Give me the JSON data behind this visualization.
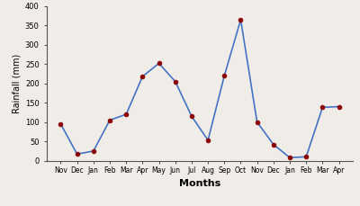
{
  "months": [
    "Nov",
    "Dec",
    "Jan",
    "Feb",
    "Mar",
    "Apr",
    "May",
    "Jun",
    "Jul",
    "Aug",
    "Sep",
    "Oct",
    "Nov",
    "Dec",
    "Jan",
    "Feb",
    "Mar",
    "Apr"
  ],
  "rainfall": [
    95,
    17,
    25,
    105,
    120,
    218,
    252,
    205,
    115,
    53,
    220,
    365,
    100,
    42,
    8,
    10,
    138,
    140
  ],
  "line_color": "#4472c4",
  "marker_color": "#8b0000",
  "marker_size": 3.5,
  "line_width": 1.2,
  "ylabel": "Rainfall (mm)",
  "xlabel": "Months",
  "ylim": [
    0,
    400
  ],
  "yticks": [
    0,
    50,
    100,
    150,
    200,
    250,
    300,
    350,
    400
  ],
  "bg_color": "#f0ede8"
}
